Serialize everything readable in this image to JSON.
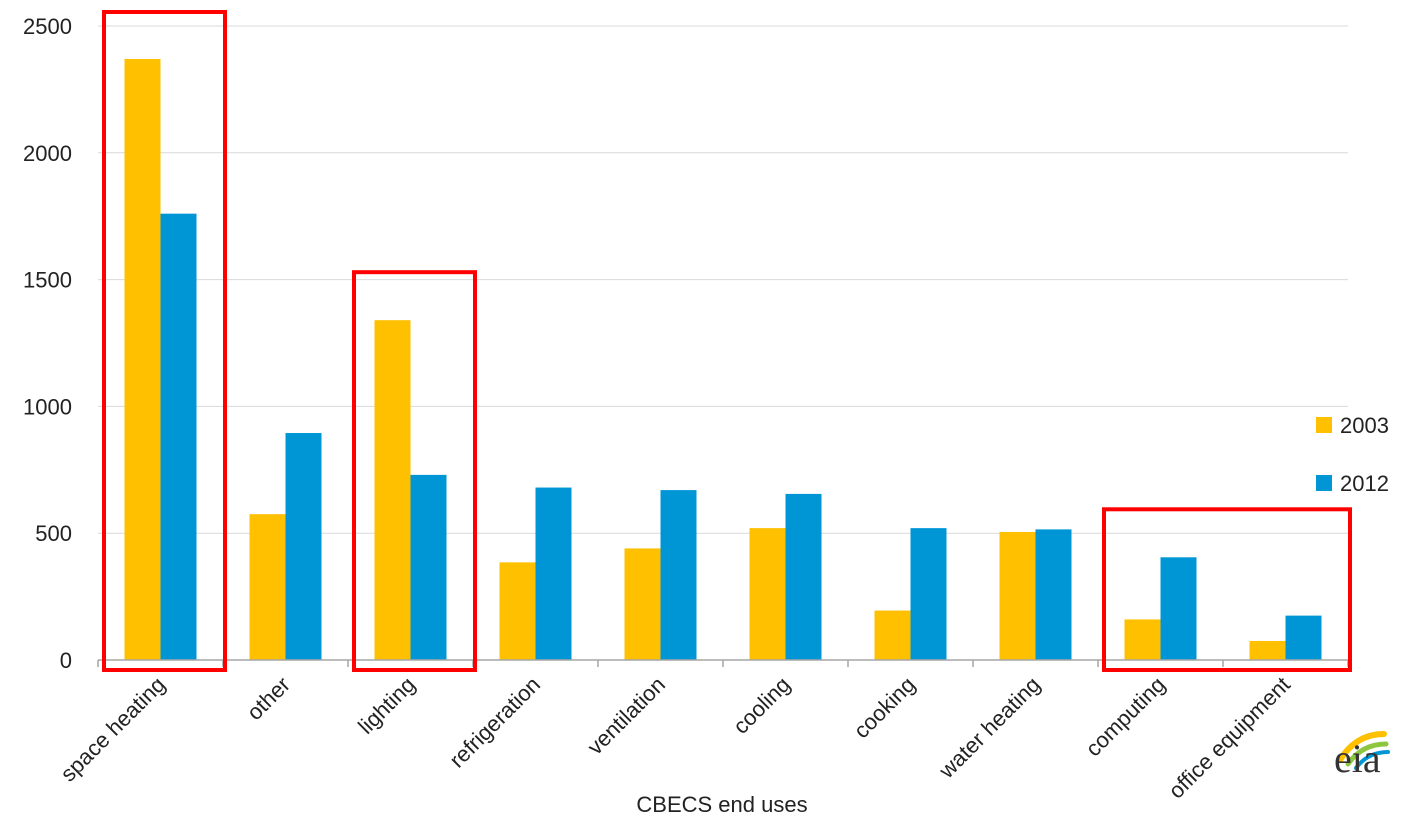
{
  "chart_data": {
    "type": "bar",
    "title": "",
    "xlabel": "CBECS end uses",
    "ylabel": "",
    "ylim": [
      0,
      2500
    ],
    "yticks": [
      0,
      500,
      1000,
      1500,
      2000,
      2500
    ],
    "grid": true,
    "legend_position": "right",
    "categories": [
      "space heating",
      "other",
      "lighting",
      "refrigeration",
      "ventilation",
      "cooling",
      "cooking",
      "water heating",
      "computing",
      "office equipment"
    ],
    "series": [
      {
        "name": "2003",
        "color": "#FFC000",
        "values": [
          2370,
          575,
          1340,
          385,
          440,
          520,
          195,
          505,
          160,
          75
        ]
      },
      {
        "name": "2012",
        "color": "#0096D6",
        "values": [
          1760,
          895,
          730,
          680,
          670,
          655,
          520,
          515,
          405,
          175
        ]
      }
    ],
    "highlight_color": "#FF0000",
    "highlighted_groups": [
      [
        "space heating"
      ],
      [
        "lighting"
      ],
      [
        "computing",
        "office equipment"
      ]
    ]
  },
  "logo": {
    "text": "eia"
  }
}
